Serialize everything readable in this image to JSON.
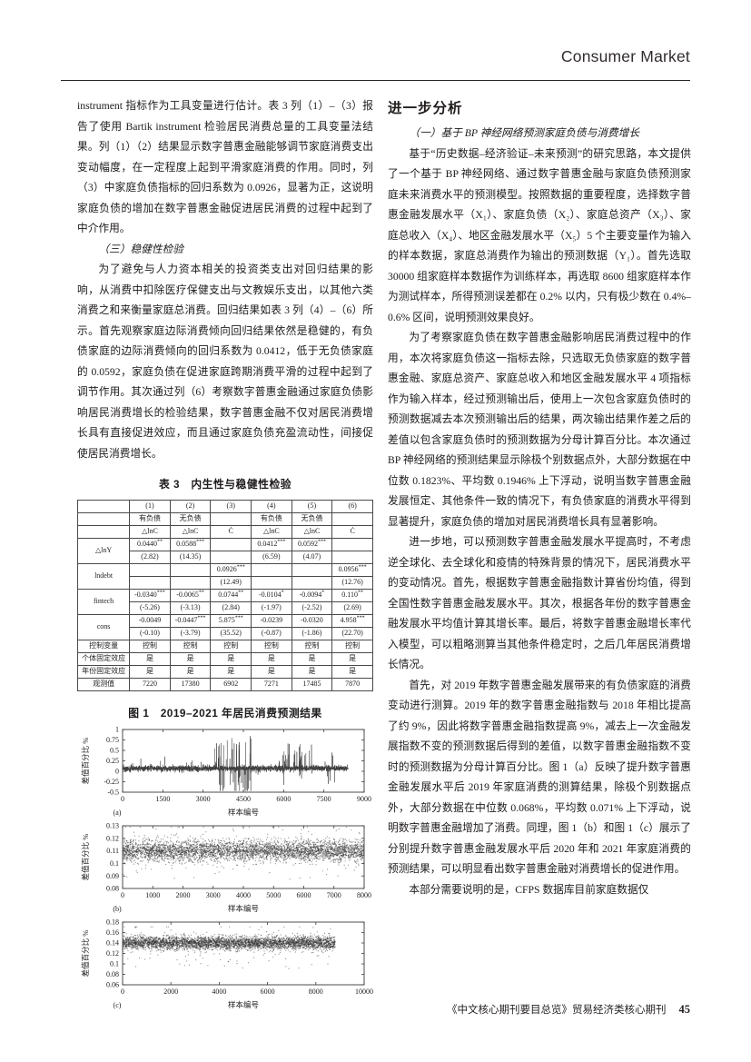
{
  "header": {
    "journal_section": "Consumer Market"
  },
  "footer": {
    "text": "《中文核心期刊要目总览》贸易经济类核心期刊",
    "page_number": "45"
  },
  "left_column": {
    "para1": "instrument 指标作为工具变量进行估计。表 3 列（1）–（3）报告了使用 Bartik instrument 检验居民消费总量的工具变量法结果。列（1）（2）结果显示数字普惠金融能够调节家庭消费支出变动幅度，在一定程度上起到平滑家庭消费的作用。同时，列（3）中家庭负债指标的回归系数为 0.0926，显著为正，这说明家庭负债的增加在数字普惠金融促进居民消费的过程中起到了中介作用。",
    "subheading": "（三）稳健性检验",
    "para2": "为了避免与人力资本相关的投资类支出对回归结果的影响，从消费中扣除医疗保健支出与文教娱乐支出，以其他六类消费之和来衡量家庭总消费。回归结果如表 3 列（4）–（6）所示。首先观察家庭边际消费倾向回归结果依然是稳健的，有负债家庭的边际消费倾向的回归系数为 0.0412，低于无负债家庭的 0.0592，家庭负债在促进家庭跨期消费平滑的过程中起到了调节作用。其次通过列（6）考察数字普惠金融通过家庭负债影响居民消费增长的检验结果，数字普惠金融不仅对居民消费增长具有直接促进效应，而且通过家庭负债充盈流动性，间接促使居民消费增长。",
    "table": {
      "title": "表 3　内生性与稳健性检验",
      "col_headers": [
        "",
        "(1)",
        "(2)",
        "(3)",
        "(4)",
        "(5)",
        "(6)"
      ],
      "group_headers": [
        "",
        "有负债",
        "无负债",
        "",
        "有负债",
        "无负债",
        ""
      ],
      "var_headers": [
        "",
        "△lnC",
        "△lnC",
        "Ċ",
        "△lnC",
        "△lnC",
        "Ċ"
      ],
      "coef_rows": [
        {
          "label": "△lnY",
          "coef": [
            "0.0440**",
            "0.0588***",
            "",
            "0.0412***",
            "0.0592***",
            ""
          ],
          "t": [
            "(2.82)",
            "(14.35)",
            "",
            "(6.59)",
            "(4.07)",
            ""
          ]
        },
        {
          "label": "lndebt",
          "coef": [
            "",
            "",
            "0.0926***",
            "",
            "",
            "0.0956***"
          ],
          "t": [
            "",
            "",
            "(12.49)",
            "",
            "",
            "(12.76)"
          ]
        },
        {
          "label": "fintech",
          "coef": [
            "-0.0340***",
            "-0.0065**",
            "0.0744**",
            "-0.0104*",
            "-0.0094*",
            "0.110**"
          ],
          "t": [
            "(-5.26)",
            "(-3.13)",
            "(2.84)",
            "(-1.97)",
            "(-2.52)",
            "(2.69)"
          ]
        },
        {
          "label": "cons",
          "coef": [
            "-0.0049",
            "-0.0447***",
            "5.875***",
            "-0.0239",
            "-0.0320",
            "4.958***"
          ],
          "t": [
            "(-0.10)",
            "(-3.79)",
            "(35.52)",
            "(-0.87)",
            "(-1.86)",
            "(22.70)"
          ]
        }
      ],
      "bottom_rows": [
        {
          "label": "控制变量",
          "values": [
            "控制",
            "控制",
            "控制",
            "控制",
            "控制",
            "控制"
          ]
        },
        {
          "label": "个体固定效应",
          "values": [
            "是",
            "是",
            "是",
            "是",
            "是",
            "是"
          ]
        },
        {
          "label": "年份固定效应",
          "values": [
            "是",
            "是",
            "是",
            "是",
            "是",
            "是"
          ]
        },
        {
          "label": "观测值",
          "values": [
            "7220",
            "17380",
            "6902",
            "7271",
            "17485",
            "7870"
          ]
        }
      ]
    },
    "figure_title": "图 1　2019–2021 年居民消费预测结果"
  },
  "right_column": {
    "heading": "进一步分析",
    "subheading": "（一）基于 BP 神经网络预测家庭负债与消费增长",
    "paras": [
      "基于“历史数据–经济验证–未来预测”的研究思路，本文提供了一个基于 BP 神经网络、通过数字普惠金融与家庭负债预测家庭未来消费水平的预测模型。按照数据的重要程度，选择数字普惠金融发展水平（X₁）、家庭负债（X₂）、家庭总资产（X₃）、家庭总收入（X₄）、地区金融发展水平（X₅）5 个主要变量作为输入的样本数据，家庭总消费作为输出的预测数据（Y₁）。首先选取 30000 组家庭样本数据作为训练样本，再选取 8600 组家庭样本作为测试样本，所得预测误差都在 0.2% 以内，只有极少数在 0.4%–0.6% 区间，说明预测效果良好。",
      "为了考察家庭负债在数字普惠金融影响居民消费过程中的作用，本次将家庭负债这一指标去除，只选取无负债家庭的数字普惠金融、家庭总资产、家庭总收入和地区金融发展水平 4 项指标作为输入样本，经过预测输出后，使用上一次包含家庭负债时的预测数据减去本次预测输出后的结果，两次输出结果作差之后的差值以包含家庭负债时的预测数据为分母计算百分比。本次通过 BP 神经网络的预测结果显示除极个别数据点外，大部分数据在中位数 0.1823%、平均数 0.1946% 上下浮动，说明当数字普惠金融发展恒定、其他条件一致的情况下，有负债家庭的消费水平得到显著提升，家庭负债的增加对居民消费增长具有显著影响。",
      "进一步地，可以预测数字普惠金融发展水平提高时，不考虑逆全球化、去全球化和疫情的特殊背景的情况下，居民消费水平的变动情况。首先，根据数字普惠金融指数计算省份均值，得到全国性数字普惠金融发展水平。其次，根据各年份的数字普惠金融发展水平均值计算其增长率。最后，将数字普惠金融增长率代入模型，可以粗略测算当其他条件稳定时，之后几年居民消费增长情况。",
      "首先，对 2019 年数字普惠金融发展带来的有负债家庭的消费变动进行测算。2019 年的数字普惠金融指数与 2018 年相比提高了约 9%，因此将数字普惠金融指数提高 9%，减去上一次金融发展指数不变的预测数据后得到的差值，以数字普惠金融指数不变时的预测数据为分母计算百分比。图 1（a）反映了提升数字普惠金融发展水平后 2019 年家庭消费的测算结果，除极个别数据点外，大部分数据在中位数 0.068%，平均数 0.071% 上下浮动，说明数字普惠金融增加了消费。同理，图 1（b）和图 1（c）展示了分别提升数字普惠金融发展水平后 2020 年和 2021 年家庭消费的预测结果，可以明显看出数字普惠金融对消费增长的促进作用。",
      "本部分需要说明的是，CFPS 数据库目前家庭数据仅"
    ]
  },
  "chart_data": [
    {
      "panel": "(a)",
      "year": "2019",
      "type": "line",
      "xlabel": "样本编号",
      "ylabel": "差值百分比 %",
      "x_range": [
        0,
        9000
      ],
      "y_range": [
        -0.5,
        1
      ],
      "x_ticks": [
        0,
        1500,
        3000,
        4500,
        6000,
        7500,
        9000
      ],
      "x_tick_labels": [
        "0",
        "1500",
        "3000",
        "4500",
        "6000",
        "7500",
        "9000"
      ],
      "y_ticks": [
        1,
        0.75,
        0.5,
        0.25,
        0,
        -0.25,
        -0.5
      ],
      "y_tick_labels": [
        "1",
        "0.75",
        "0.5",
        "0.25",
        "0",
        "-0.25",
        "-0.5"
      ],
      "grid": false,
      "center_pct": 0.07,
      "median_pct": 0.068,
      "mean_pct": 0.071,
      "x_data_max": 8400,
      "n_points": 3000,
      "noise_sd": 0.034,
      "spikes": [
        {
          "x0": 0,
          "x1": 8400,
          "p": 0.008,
          "amp_min": 0.08,
          "amp_max": 0.3,
          "pos_share": 0.75
        },
        {
          "x0": 3400,
          "x1": 4800,
          "p": 0.12,
          "amp_min": 0.1,
          "amp_max": 0.78,
          "pos_share": 0.6
        },
        {
          "x0": 5900,
          "x1": 7100,
          "p": 0.06,
          "amp_min": 0.1,
          "amp_max": 0.6,
          "pos_share": 0.75
        },
        {
          "x0": 7500,
          "x1": 7900,
          "p": 0.05,
          "amp_min": 0.1,
          "amp_max": 0.4,
          "pos_share": 0.35
        }
      ],
      "clip": [
        -0.47,
        0.92
      ]
    },
    {
      "panel": "(b)",
      "year": "2020",
      "type": "scatter",
      "xlabel": "样本编号",
      "ylabel": "差值百分比 %",
      "x_range": [
        0,
        8000
      ],
      "y_range": [
        0.08,
        0.13
      ],
      "x_ticks": [
        0,
        1000,
        2000,
        3000,
        4000,
        5000,
        6000,
        7000,
        8000
      ],
      "x_tick_labels": [
        "0",
        "1000",
        "2000",
        "3000",
        "4000",
        "5000",
        "6000",
        "7000",
        "8000"
      ],
      "y_ticks": [
        0.13,
        0.12,
        0.11,
        0.1,
        0.09,
        0.08
      ],
      "y_tick_labels": [
        "0.13",
        "0.12",
        "0.11",
        "0.1",
        "0.09",
        "0.08"
      ],
      "grid": false,
      "center_pct": 0.11,
      "x_data_max": 8000,
      "n_points": 4200,
      "noise_sd": 0.0042,
      "outlier_p": 0.018,
      "outlier_amp": [
        0.008,
        0.024
      ],
      "outlier_neg_share": 0.55,
      "clip": [
        0.082,
        0.129
      ]
    },
    {
      "panel": "(c)",
      "year": "2021",
      "type": "scatter",
      "xlabel": "样本编号",
      "ylabel": "差值百分比 %",
      "x_range": [
        0,
        10000
      ],
      "y_range": [
        0.06,
        0.18
      ],
      "x_ticks": [
        0,
        2000,
        4000,
        6000,
        8000,
        10000
      ],
      "x_tick_labels": [
        "0",
        "2000",
        "4000",
        "6000",
        "8000",
        "10000"
      ],
      "y_ticks": [
        0.18,
        0.16,
        0.14,
        0.12,
        0.1,
        0.08,
        0.06
      ],
      "y_tick_labels": [
        "0.18",
        "0.16",
        "0.14",
        "0.12",
        "0.1",
        "0.08",
        "0.06"
      ],
      "grid": false,
      "center_pct": 0.14,
      "x_data_max": 8800,
      "n_points": 4200,
      "noise_sd": 0.0062,
      "outlier_p": 0.02,
      "outlier_amp": [
        0.012,
        0.05
      ],
      "outlier_neg_share": 0.65,
      "clip": [
        0.068,
        0.171
      ]
    }
  ]
}
